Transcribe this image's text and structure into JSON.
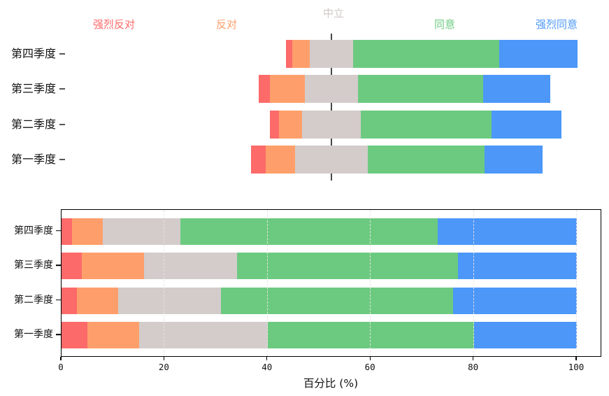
{
  "figure": {
    "background": "#ffffff",
    "xlabel": "百分比（%）",
    "xlabel_display": "百分比 (%)"
  },
  "colors": {
    "strongly_disagree": "#fc6a6a",
    "disagree": "#fe9f6b",
    "neutral": "#d3cccb",
    "neutral_legend_text": "#cfc7c5",
    "agree": "#6cca80",
    "strongly_agree": "#4c97f8",
    "center_line": "#333333",
    "axis": "#000000"
  },
  "chart_data": [
    {
      "type": "bar",
      "variant": "diverging-stacked-horizontal",
      "orientation": "horizontal",
      "categories": [
        "第四季度",
        "第三季度",
        "第二季度",
        "第一季度"
      ],
      "category_tick_suffix": "-",
      "series": [
        {
          "name": "强烈反对",
          "key": "strongly-disagree",
          "color": "#fc6a6a",
          "values": [
            2,
            4,
            3,
            5
          ]
        },
        {
          "name": "反对",
          "key": "disagree",
          "color": "#fe9f6b",
          "values": [
            6,
            12,
            8,
            10
          ]
        },
        {
          "name": "中立",
          "key": "neutral",
          "color": "#d3cccb",
          "values": [
            15,
            18,
            20,
            25
          ]
        },
        {
          "name": "同意",
          "key": "agree",
          "color": "#6cca80",
          "values": [
            50,
            43,
            45,
            40
          ]
        },
        {
          "name": "强烈同意",
          "key": "strongly-agree",
          "color": "#4c97f8",
          "values": [
            27,
            23,
            24,
            20
          ]
        }
      ],
      "center_rule": "bars offset so the midpoint of the neutral segment sits on the vertical reference line",
      "legend_position": "top",
      "grid": false
    },
    {
      "type": "bar",
      "variant": "stacked-horizontal",
      "orientation": "horizontal",
      "categories": [
        "第四季度",
        "第三季度",
        "第二季度",
        "第一季度"
      ],
      "series": [
        {
          "name": "强烈反对",
          "key": "strongly-disagree",
          "color": "#fc6a6a",
          "values": [
            2,
            4,
            3,
            5
          ]
        },
        {
          "name": "反对",
          "key": "disagree",
          "color": "#fe9f6b",
          "values": [
            6,
            12,
            8,
            10
          ]
        },
        {
          "name": "中立",
          "key": "neutral",
          "color": "#d3cccb",
          "values": [
            15,
            18,
            20,
            25
          ]
        },
        {
          "name": "同意",
          "key": "agree",
          "color": "#6cca80",
          "values": [
            50,
            43,
            45,
            40
          ]
        },
        {
          "name": "强烈同意",
          "key": "strongly-agree",
          "color": "#4c97f8",
          "values": [
            27,
            23,
            24,
            20
          ]
        }
      ],
      "xlabel": "百分比 (%)",
      "xlim": [
        0,
        100
      ],
      "xticks": [
        0,
        20,
        40,
        60,
        80,
        100
      ],
      "grid": true,
      "legend": false
    }
  ]
}
